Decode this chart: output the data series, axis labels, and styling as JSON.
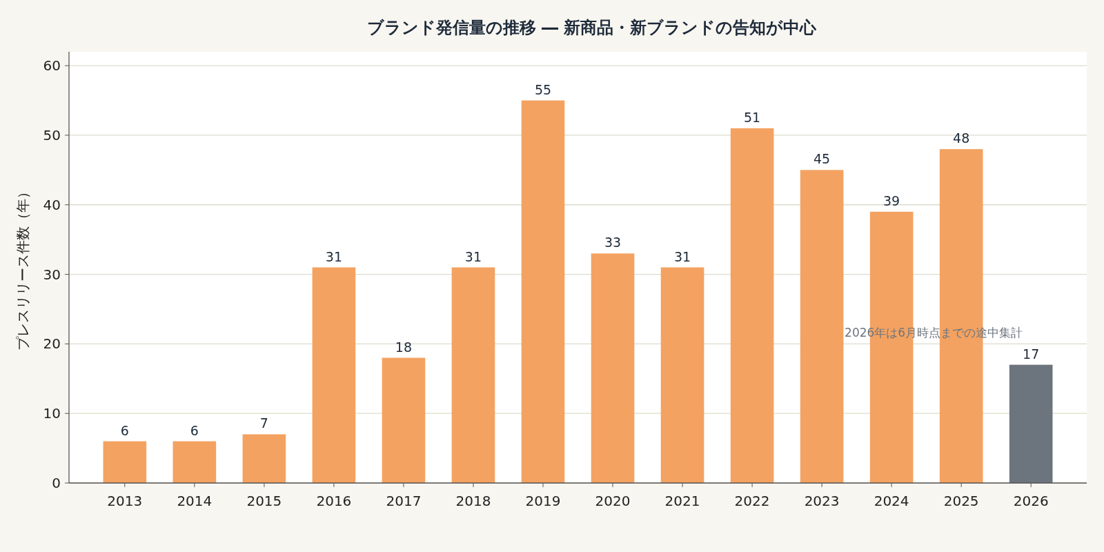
{
  "chart_data": {
    "type": "bar",
    "title": "ブランド発信量の推移 ― 新商品・新ブランドの告知が中心",
    "ylabel": "プレスリリース件数（年）",
    "categories": [
      "2013",
      "2014",
      "2015",
      "2016",
      "2017",
      "2018",
      "2019",
      "2020",
      "2021",
      "2022",
      "2023",
      "2024",
      "2025",
      "2026"
    ],
    "values": [
      6,
      6,
      7,
      31,
      18,
      31,
      55,
      33,
      31,
      51,
      45,
      39,
      48,
      17
    ],
    "colors": [
      "#f4a261",
      "#f4a261",
      "#f4a261",
      "#f4a261",
      "#f4a261",
      "#f4a261",
      "#f4a261",
      "#f4a261",
      "#f4a261",
      "#f4a261",
      "#f4a261",
      "#f4a261",
      "#f4a261",
      "#6c757d"
    ],
    "ylim": [
      0,
      62
    ],
    "yticks": [
      0,
      10,
      20,
      30,
      40,
      50,
      60
    ],
    "grid": "y",
    "data_labels": true,
    "annotations": [
      "2026年は6月時点までの途中集計"
    ]
  }
}
